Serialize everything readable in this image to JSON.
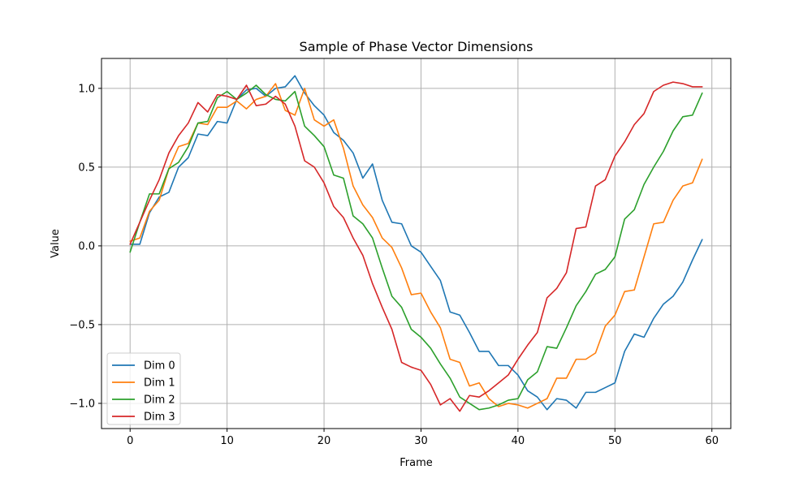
{
  "chart_data": {
    "type": "line",
    "title": "Sample of Phase Vector Dimensions",
    "xlabel": "Frame",
    "ylabel": "Value",
    "xlim": [
      -2.95,
      61.95
    ],
    "ylim": [
      -1.16,
      1.19
    ],
    "xticks": [
      0,
      10,
      20,
      30,
      40,
      50,
      60
    ],
    "yticks": [
      -1.0,
      -0.5,
      0.0,
      0.5,
      1.0
    ],
    "ytick_labels": [
      "−1.0",
      "−0.5",
      "0.0",
      "0.5",
      "1.0"
    ],
    "grid": true,
    "legend_position": "lower-left",
    "x": [
      0,
      1,
      2,
      3,
      4,
      5,
      6,
      7,
      8,
      9,
      10,
      11,
      12,
      13,
      14,
      15,
      16,
      17,
      18,
      19,
      20,
      21,
      22,
      23,
      24,
      25,
      26,
      27,
      28,
      29,
      30,
      31,
      32,
      33,
      34,
      35,
      36,
      37,
      38,
      39,
      40,
      41,
      42,
      43,
      44,
      45,
      46,
      47,
      48,
      49,
      50,
      51,
      52,
      53,
      54,
      55,
      56,
      57,
      58,
      59
    ],
    "series": [
      {
        "name": "Dim 0",
        "color": "#1f77b4",
        "values": [
          0.01,
          0.01,
          0.21,
          0.31,
          0.34,
          0.5,
          0.56,
          0.71,
          0.7,
          0.79,
          0.78,
          0.93,
          0.99,
          1.0,
          0.95,
          1.0,
          1.01,
          1.08,
          0.97,
          0.89,
          0.83,
          0.72,
          0.67,
          0.59,
          0.43,
          0.52,
          0.29,
          0.15,
          0.14,
          0.0,
          -0.04,
          -0.13,
          -0.22,
          -0.42,
          -0.44,
          -0.55,
          -0.67,
          -0.67,
          -0.76,
          -0.76,
          -0.82,
          -0.92,
          -0.96,
          -1.04,
          -0.97,
          -0.98,
          -1.03,
          -0.93,
          -0.93,
          -0.9,
          -0.87,
          -0.67,
          -0.56,
          -0.58,
          -0.46,
          -0.37,
          -0.32,
          -0.23,
          -0.09,
          0.04
        ]
      },
      {
        "name": "Dim 1",
        "color": "#ff7f0e",
        "values": [
          0.03,
          0.05,
          0.22,
          0.29,
          0.49,
          0.63,
          0.65,
          0.78,
          0.77,
          0.88,
          0.88,
          0.92,
          0.87,
          0.93,
          0.95,
          1.03,
          0.86,
          0.83,
          1.0,
          0.8,
          0.76,
          0.8,
          0.62,
          0.38,
          0.26,
          0.18,
          0.05,
          -0.01,
          -0.14,
          -0.31,
          -0.3,
          -0.42,
          -0.52,
          -0.72,
          -0.74,
          -0.89,
          -0.87,
          -0.97,
          -1.02,
          -1.0,
          -1.01,
          -1.03,
          -1.0,
          -0.97,
          -0.84,
          -0.84,
          -0.72,
          -0.72,
          -0.68,
          -0.51,
          -0.44,
          -0.29,
          -0.28,
          -0.07,
          0.14,
          0.15,
          0.29,
          0.38,
          0.4,
          0.55
        ]
      },
      {
        "name": "Dim 2",
        "color": "#2ca02c",
        "values": [
          -0.04,
          0.15,
          0.33,
          0.33,
          0.49,
          0.53,
          0.63,
          0.78,
          0.79,
          0.94,
          0.98,
          0.93,
          0.97,
          1.02,
          0.96,
          0.93,
          0.92,
          0.98,
          0.76,
          0.7,
          0.63,
          0.45,
          0.43,
          0.19,
          0.14,
          0.05,
          -0.14,
          -0.32,
          -0.39,
          -0.53,
          -0.58,
          -0.65,
          -0.75,
          -0.84,
          -0.96,
          -1.0,
          -1.04,
          -1.03,
          -1.01,
          -0.98,
          -0.97,
          -0.85,
          -0.8,
          -0.64,
          -0.65,
          -0.52,
          -0.38,
          -0.29,
          -0.18,
          -0.15,
          -0.07,
          0.17,
          0.23,
          0.39,
          0.5,
          0.6,
          0.73,
          0.82,
          0.83,
          0.97
        ]
      },
      {
        "name": "Dim 3",
        "color": "#d62728",
        "values": [
          0.01,
          0.15,
          0.29,
          0.42,
          0.59,
          0.7,
          0.78,
          0.91,
          0.85,
          0.96,
          0.95,
          0.93,
          1.02,
          0.89,
          0.9,
          0.95,
          0.9,
          0.76,
          0.54,
          0.5,
          0.4,
          0.25,
          0.18,
          0.05,
          -0.06,
          -0.24,
          -0.39,
          -0.53,
          -0.74,
          -0.77,
          -0.79,
          -0.88,
          -1.01,
          -0.97,
          -1.05,
          -0.95,
          -0.96,
          -0.92,
          -0.87,
          -0.82,
          -0.72,
          -0.63,
          -0.55,
          -0.33,
          -0.27,
          -0.17,
          0.11,
          0.12,
          0.38,
          0.42,
          0.57,
          0.66,
          0.77,
          0.84,
          0.98,
          1.02,
          1.04,
          1.03,
          1.01,
          1.01
        ]
      }
    ]
  }
}
